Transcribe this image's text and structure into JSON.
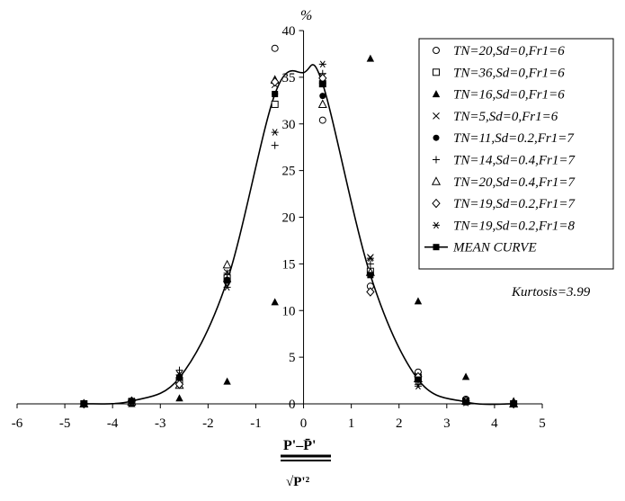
{
  "chart_data": {
    "type": "scatter",
    "title": "",
    "ylabel": "%",
    "xlabel": "P'-P̄' / √P'²",
    "xlim": [
      -6,
      5
    ],
    "ylim": [
      0,
      40
    ],
    "xticks": [
      "-6",
      "-5",
      "-4",
      "-3",
      "-2",
      "-1",
      "0",
      "1",
      "2",
      "3",
      "4",
      "5"
    ],
    "yticks": [
      "0",
      "5",
      "10",
      "15",
      "20",
      "25",
      "30",
      "35",
      "40"
    ],
    "grid": false,
    "legend_position": "top-right",
    "annotation": "Kurtosis=3.99",
    "x_categories": [
      -4.6,
      -3.6,
      -2.6,
      -1.6,
      -0.6,
      0.4,
      1.4,
      2.4,
      3.4,
      4.4
    ],
    "series": [
      {
        "name": "TN=20,Sd=0,Fr1=6",
        "marker": "circle-open",
        "values": [
          0,
          0.2,
          2.3,
          13.2,
          38.1,
          30.4,
          12.6,
          3.4,
          0.5,
          0
        ]
      },
      {
        "name": "TN=36,Sd=0,Fr1=6",
        "marker": "square-open",
        "values": [
          0,
          0.2,
          2.5,
          13.5,
          32.1,
          34.3,
          14.2,
          2.8,
          0.3,
          0
        ]
      },
      {
        "name": "TN=16,Sd=0,Fr1=6",
        "marker": "triangle-filled",
        "values": [
          0,
          0,
          0.6,
          2.4,
          10.9,
          34.7,
          37.0,
          11.0,
          2.9,
          0.3
        ]
      },
      {
        "name": "TN=5,Sd=0,Fr1=6",
        "marker": "x",
        "values": [
          0,
          0.3,
          3.2,
          14.1,
          34.2,
          35.1,
          15.7,
          3.0,
          0.3,
          0
        ]
      },
      {
        "name": "TN=11,Sd=0.2,Fr1=7",
        "marker": "circle-filled",
        "values": [
          0,
          0.3,
          2.9,
          13.3,
          33.2,
          33.0,
          13.9,
          2.8,
          0.4,
          0
        ]
      },
      {
        "name": "TN=14,Sd=0.4,Fr1=7",
        "marker": "plus",
        "values": [
          0,
          0.2,
          3.6,
          14.0,
          27.7,
          35.4,
          15.0,
          2.1,
          0.2,
          0
        ]
      },
      {
        "name": "TN=20,Sd=0.4,Fr1=7",
        "marker": "triangle-open",
        "values": [
          0,
          0.2,
          2.0,
          14.9,
          34.7,
          32.1,
          14.1,
          2.7,
          0.3,
          0
        ]
      },
      {
        "name": "TN=19,Sd=0.2,Fr1=7",
        "marker": "diamond-open",
        "values": [
          0,
          0.3,
          2.1,
          13.1,
          34.5,
          34.9,
          12.0,
          2.9,
          0.3,
          0
        ]
      },
      {
        "name": "TN=19,Sd=0.2,Fr1=8",
        "marker": "asterisk",
        "values": [
          0,
          0.2,
          3.1,
          12.5,
          29.1,
          36.4,
          15.6,
          1.9,
          0.1,
          0
        ]
      }
    ],
    "mean_curve": {
      "name": "MEAN CURVE",
      "marker": "square-filled",
      "points": [
        [
          -4.6,
          0
        ],
        [
          -3.6,
          0.3
        ],
        [
          -2.6,
          2.8
        ],
        [
          -1.6,
          13.2
        ],
        [
          -0.6,
          33.2
        ],
        [
          0.4,
          34.3
        ],
        [
          1.4,
          13.8
        ],
        [
          2.4,
          2.6
        ],
        [
          3.4,
          0.2
        ],
        [
          4.4,
          0
        ]
      ],
      "curve_peak": [
        0,
        35.5
      ]
    }
  }
}
